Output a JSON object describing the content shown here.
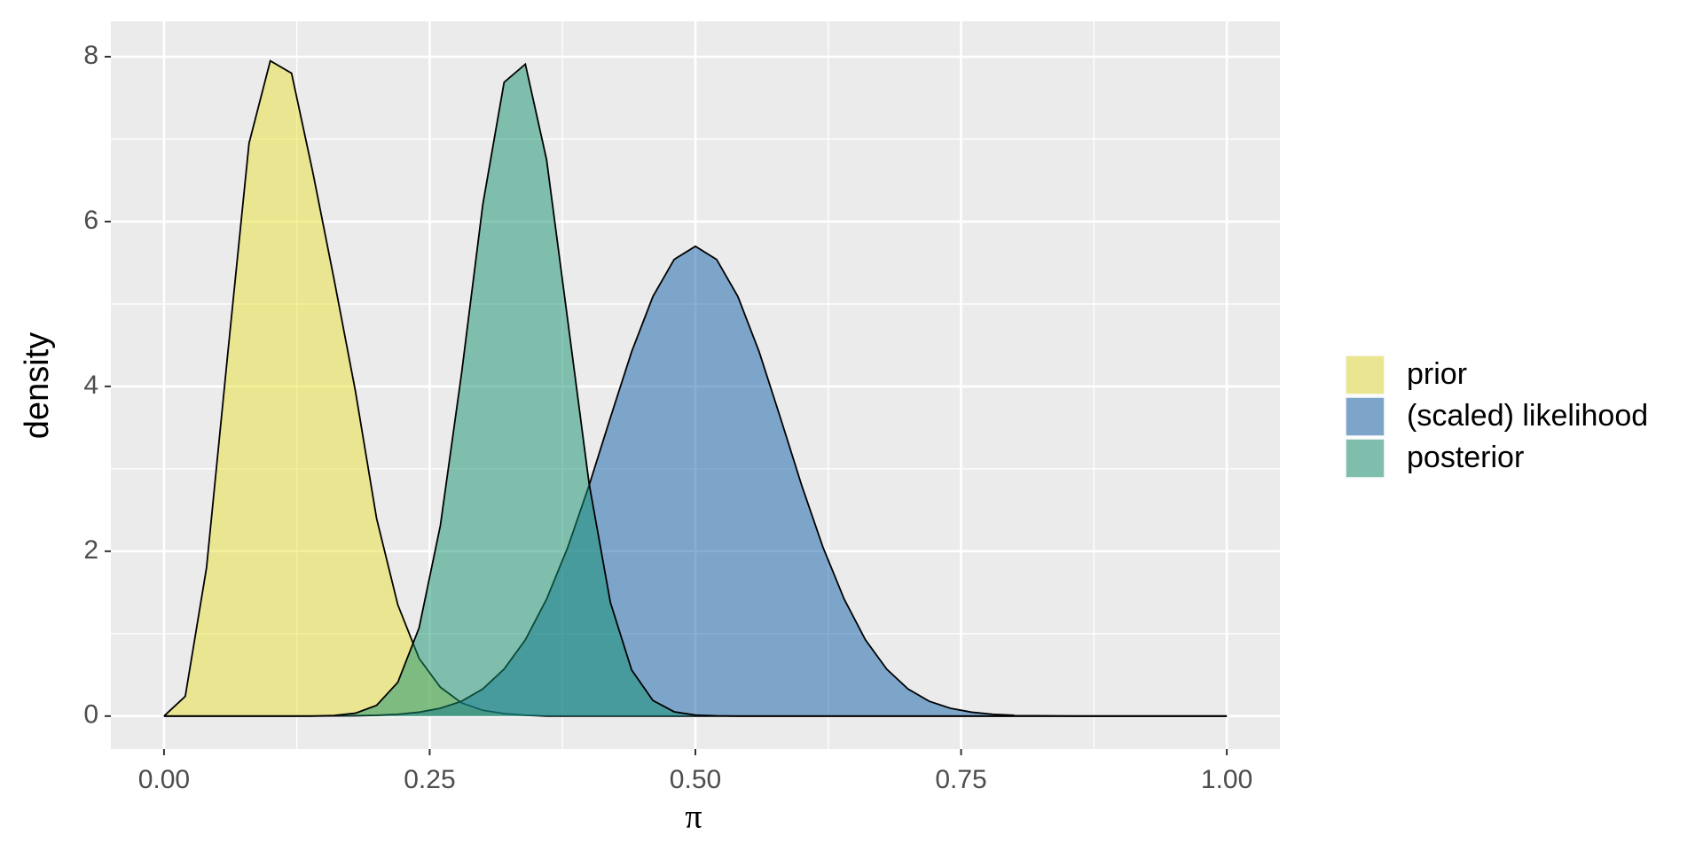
{
  "chart_data": {
    "type": "area",
    "xlabel": "π",
    "ylabel": "density",
    "x": [
      0,
      0.02,
      0.04,
      0.06,
      0.08,
      0.1,
      0.12,
      0.14,
      0.16,
      0.18,
      0.2,
      0.22,
      0.24,
      0.26,
      0.28,
      0.3,
      0.32,
      0.34,
      0.36,
      0.38,
      0.4,
      0.42,
      0.44,
      0.46,
      0.48,
      0.5,
      0.52,
      0.54,
      0.56,
      0.58,
      0.6,
      0.62,
      0.64,
      0.66,
      0.68,
      0.7,
      0.72,
      0.74,
      0.76,
      0.78,
      0.8,
      0.82,
      0.84,
      0.86,
      0.88,
      0.9,
      0.92,
      0.94,
      0.96,
      0.98,
      1
    ],
    "series": [
      {
        "name": "prior",
        "color": "#e8df35",
        "values": [
          0,
          0.24,
          1.8,
          4.4,
          6.95,
          7.95,
          7.8,
          6.6,
          5.3,
          3.95,
          2.4,
          1.35,
          0.7,
          0.35,
          0.16,
          0.07,
          0.03,
          0.01,
          0,
          0,
          0,
          0,
          0,
          0,
          0,
          0,
          0,
          0,
          0,
          0,
          0,
          0,
          0,
          0,
          0,
          0,
          0,
          0,
          0,
          0,
          0,
          0,
          0,
          0,
          0,
          0,
          0,
          0,
          0,
          0,
          0
        ]
      },
      {
        "name": "(scaled) likelihood",
        "color": "#1060aa",
        "values": [
          0,
          0,
          0,
          0,
          0,
          0,
          0,
          0,
          0.0016,
          0.004,
          0.0095,
          0.022,
          0.047,
          0.095,
          0.18,
          0.33,
          0.57,
          0.925,
          1.42,
          2.05,
          2.8,
          3.62,
          4.42,
          5.09,
          5.54,
          5.7,
          5.54,
          5.09,
          4.42,
          3.62,
          2.8,
          2.05,
          1.42,
          0.925,
          0.57,
          0.33,
          0.18,
          0.095,
          0.047,
          0.022,
          0.0095,
          0.004,
          0.0016,
          0,
          0,
          0,
          0,
          0,
          0,
          0,
          0
        ]
      },
      {
        "name": "posterior",
        "color": "#139170",
        "values": [
          0,
          0,
          0,
          0,
          0,
          0,
          0,
          0.001,
          0.0076,
          0.035,
          0.13,
          0.41,
          1.07,
          2.31,
          4.16,
          6.21,
          7.69,
          7.91,
          6.75,
          4.79,
          2.82,
          1.38,
          0.56,
          0.19,
          0.052,
          0.012,
          0.003,
          0,
          0,
          0,
          0,
          0,
          0,
          0,
          0,
          0,
          0,
          0,
          0,
          0,
          0,
          0,
          0,
          0,
          0,
          0,
          0,
          0,
          0,
          0,
          0
        ]
      }
    ],
    "xlim": [
      -0.05,
      1.05
    ],
    "xticks": [
      {
        "value": 0,
        "label": "0.00"
      },
      {
        "value": 0.25,
        "label": "0.25"
      },
      {
        "value": 0.5,
        "label": "0.50"
      },
      {
        "value": 0.75,
        "label": "0.75"
      },
      {
        "value": 1,
        "label": "1.00"
      }
    ],
    "ylim": [
      -0.4,
      8.43
    ],
    "yticks": [
      0,
      2,
      4,
      6,
      8
    ],
    "grid": true,
    "legend": "right"
  }
}
